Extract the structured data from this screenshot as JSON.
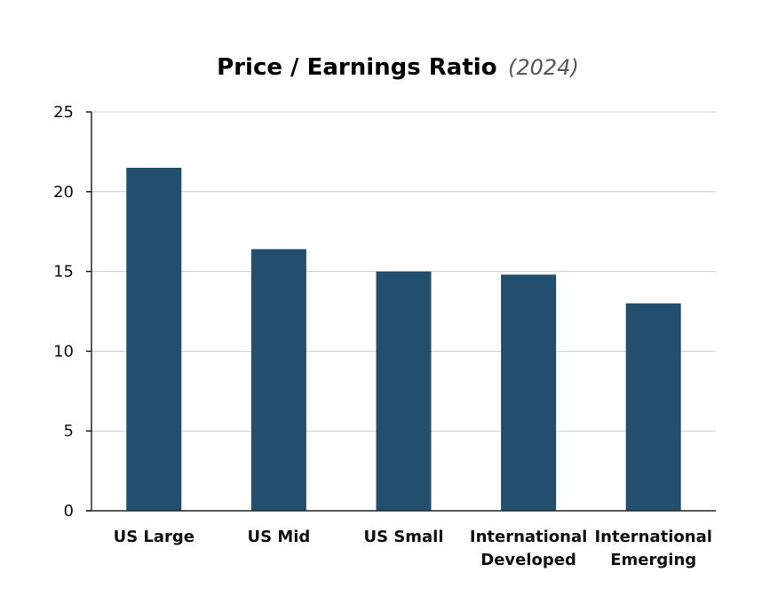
{
  "chart_data": {
    "type": "bar",
    "title": "Price / Earnings Ratio",
    "subtitle": "(2024)",
    "xlabel": "",
    "ylabel": "",
    "categories": [
      [
        "US Large"
      ],
      [
        "US Mid"
      ],
      [
        "US Small"
      ],
      [
        "International",
        "Developed"
      ],
      [
        "International",
        "Emerging"
      ]
    ],
    "values": [
      21.5,
      16.4,
      15.0,
      14.8,
      13.0
    ],
    "ylim": [
      0,
      25
    ],
    "yticks": [
      0,
      5,
      10,
      15,
      20,
      25
    ],
    "grid": true,
    "legend": "none",
    "bar_color": "#234f6e"
  }
}
